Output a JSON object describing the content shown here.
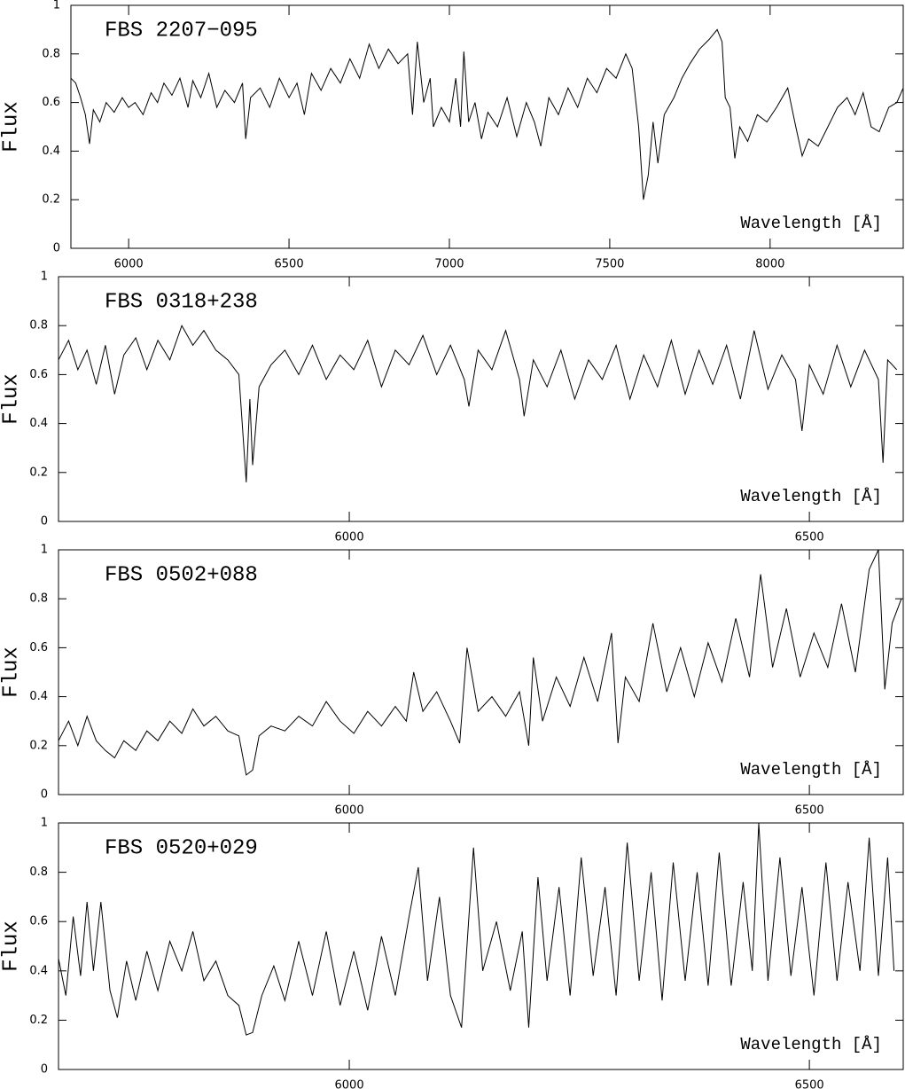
{
  "chart_data": [
    {
      "type": "line",
      "title": "FBS 2207−095",
      "xlabel": "Wavelength [Å]",
      "ylabel": "Flux",
      "color": "#000000",
      "xlim": [
        5820,
        8415
      ],
      "ylim": [
        0,
        1
      ],
      "xticks": [
        6000,
        6500,
        7000,
        7500,
        8000
      ],
      "yticks": [
        0,
        0.2,
        0.4,
        0.6,
        0.8,
        1
      ],
      "x": [
        5820,
        5835,
        5850,
        5865,
        5878,
        5890,
        5910,
        5930,
        5955,
        5980,
        6000,
        6020,
        6045,
        6070,
        6090,
        6110,
        6135,
        6160,
        6185,
        6200,
        6225,
        6250,
        6275,
        6300,
        6330,
        6355,
        6365,
        6380,
        6410,
        6440,
        6470,
        6500,
        6525,
        6548,
        6570,
        6600,
        6630,
        6660,
        6690,
        6720,
        6750,
        6780,
        6810,
        6840,
        6870,
        6885,
        6900,
        6920,
        6940,
        6950,
        6975,
        7000,
        7020,
        7035,
        7045,
        7060,
        7080,
        7100,
        7120,
        7150,
        7180,
        7210,
        7240,
        7265,
        7285,
        7310,
        7340,
        7370,
        7400,
        7430,
        7460,
        7490,
        7520,
        7550,
        7570,
        7590,
        7605,
        7620,
        7635,
        7650,
        7670,
        7700,
        7725,
        7750,
        7780,
        7810,
        7835,
        7850,
        7860,
        7875,
        7890,
        7905,
        7930,
        7960,
        7990,
        8020,
        8055,
        8080,
        8100,
        8120,
        8150,
        8180,
        8210,
        8240,
        8265,
        8290,
        8315,
        8340,
        8370,
        8395,
        8415
      ],
      "values": [
        0.7,
        0.68,
        0.62,
        0.55,
        0.43,
        0.57,
        0.52,
        0.6,
        0.56,
        0.62,
        0.58,
        0.6,
        0.55,
        0.64,
        0.6,
        0.68,
        0.63,
        0.7,
        0.58,
        0.69,
        0.62,
        0.72,
        0.58,
        0.65,
        0.6,
        0.68,
        0.45,
        0.62,
        0.66,
        0.58,
        0.7,
        0.62,
        0.68,
        0.55,
        0.72,
        0.65,
        0.74,
        0.68,
        0.78,
        0.7,
        0.84,
        0.74,
        0.82,
        0.76,
        0.8,
        0.55,
        0.85,
        0.6,
        0.7,
        0.5,
        0.58,
        0.52,
        0.7,
        0.5,
        0.81,
        0.52,
        0.6,
        0.45,
        0.56,
        0.5,
        0.62,
        0.46,
        0.6,
        0.52,
        0.42,
        0.62,
        0.55,
        0.66,
        0.58,
        0.7,
        0.64,
        0.74,
        0.7,
        0.8,
        0.74,
        0.5,
        0.2,
        0.3,
        0.52,
        0.35,
        0.55,
        0.62,
        0.7,
        0.76,
        0.82,
        0.86,
        0.9,
        0.85,
        0.62,
        0.58,
        0.37,
        0.5,
        0.44,
        0.55,
        0.52,
        0.58,
        0.66,
        0.5,
        0.38,
        0.45,
        0.42,
        0.5,
        0.58,
        0.62,
        0.55,
        0.64,
        0.5,
        0.48,
        0.58,
        0.6,
        0.66
      ]
    },
    {
      "type": "line",
      "title": "FBS 0318+238",
      "xlabel": "Wavelength [Å]",
      "ylabel": "Flux",
      "color": "#000000",
      "xlim": [
        5684,
        6602
      ],
      "ylim": [
        0,
        1
      ],
      "xticks": [
        6000,
        6500
      ],
      "yticks": [
        0,
        0.2,
        0.4,
        0.6,
        0.8,
        1
      ],
      "x": [
        5684,
        5695,
        5705,
        5715,
        5725,
        5735,
        5745,
        5755,
        5768,
        5780,
        5792,
        5805,
        5818,
        5830,
        5842,
        5855,
        5868,
        5880,
        5888,
        5892,
        5895,
        5902,
        5915,
        5930,
        5945,
        5960,
        5975,
        5990,
        6005,
        6020,
        6035,
        6050,
        6065,
        6080,
        6095,
        6110,
        6125,
        6130,
        6140,
        6155,
        6170,
        6185,
        6190,
        6200,
        6215,
        6230,
        6245,
        6260,
        6275,
        6290,
        6305,
        6320,
        6335,
        6350,
        6365,
        6380,
        6395,
        6410,
        6425,
        6440,
        6455,
        6470,
        6485,
        6492,
        6500,
        6515,
        6530,
        6545,
        6560,
        6575,
        6580,
        6585,
        6595
      ],
      "values": [
        0.66,
        0.74,
        0.62,
        0.7,
        0.56,
        0.72,
        0.52,
        0.68,
        0.75,
        0.62,
        0.74,
        0.66,
        0.8,
        0.72,
        0.78,
        0.7,
        0.66,
        0.6,
        0.16,
        0.5,
        0.23,
        0.55,
        0.64,
        0.7,
        0.6,
        0.72,
        0.58,
        0.68,
        0.62,
        0.74,
        0.55,
        0.7,
        0.64,
        0.76,
        0.6,
        0.72,
        0.58,
        0.47,
        0.7,
        0.62,
        0.78,
        0.58,
        0.43,
        0.66,
        0.55,
        0.7,
        0.5,
        0.66,
        0.58,
        0.72,
        0.5,
        0.68,
        0.55,
        0.74,
        0.52,
        0.7,
        0.56,
        0.72,
        0.5,
        0.78,
        0.54,
        0.68,
        0.58,
        0.37,
        0.64,
        0.52,
        0.72,
        0.55,
        0.7,
        0.58,
        0.24,
        0.66,
        0.62
      ]
    },
    {
      "type": "line",
      "title": "FBS 0502+088",
      "xlabel": "Wavelength [Å]",
      "ylabel": "Flux",
      "color": "#000000",
      "xlim": [
        5684,
        6602
      ],
      "ylim": [
        0,
        1
      ],
      "xticks": [
        6000,
        6500
      ],
      "yticks": [
        0,
        0.2,
        0.4,
        0.6,
        0.8,
        1
      ],
      "x": [
        5684,
        5695,
        5705,
        5715,
        5725,
        5735,
        5745,
        5755,
        5768,
        5780,
        5792,
        5805,
        5818,
        5830,
        5842,
        5855,
        5868,
        5880,
        5888,
        5895,
        5902,
        5915,
        5930,
        5945,
        5960,
        5975,
        5990,
        6005,
        6020,
        6035,
        6050,
        6062,
        6070,
        6080,
        6095,
        6110,
        6120,
        6128,
        6140,
        6155,
        6170,
        6185,
        6195,
        6200,
        6210,
        6225,
        6240,
        6255,
        6270,
        6285,
        6292,
        6300,
        6315,
        6330,
        6345,
        6360,
        6375,
        6390,
        6405,
        6420,
        6435,
        6447,
        6460,
        6475,
        6490,
        6505,
        6520,
        6535,
        6550,
        6565,
        6575,
        6582,
        6590,
        6600
      ],
      "values": [
        0.22,
        0.3,
        0.2,
        0.32,
        0.22,
        0.18,
        0.15,
        0.22,
        0.18,
        0.26,
        0.22,
        0.3,
        0.25,
        0.35,
        0.28,
        0.32,
        0.26,
        0.24,
        0.08,
        0.1,
        0.24,
        0.28,
        0.26,
        0.32,
        0.28,
        0.38,
        0.3,
        0.25,
        0.34,
        0.28,
        0.36,
        0.3,
        0.5,
        0.34,
        0.42,
        0.3,
        0.21,
        0.6,
        0.34,
        0.4,
        0.32,
        0.42,
        0.2,
        0.56,
        0.3,
        0.48,
        0.36,
        0.56,
        0.38,
        0.66,
        0.21,
        0.48,
        0.38,
        0.7,
        0.42,
        0.6,
        0.4,
        0.62,
        0.46,
        0.72,
        0.48,
        0.9,
        0.52,
        0.76,
        0.48,
        0.66,
        0.52,
        0.78,
        0.5,
        0.92,
        1.0,
        0.43,
        0.7,
        0.8
      ]
    },
    {
      "type": "line",
      "title": "FBS 0520+029",
      "xlabel": "Wavelength [Å]",
      "ylabel": "Flux",
      "color": "#000000",
      "xlim": [
        5684,
        6602
      ],
      "ylim": [
        0,
        1
      ],
      "xticks": [
        6000,
        6500
      ],
      "yticks": [
        0,
        0.2,
        0.4,
        0.6,
        0.8,
        1
      ],
      "x": [
        5684,
        5692,
        5700,
        5708,
        5715,
        5722,
        5730,
        5740,
        5748,
        5758,
        5768,
        5780,
        5792,
        5805,
        5818,
        5830,
        5842,
        5855,
        5868,
        5880,
        5888,
        5895,
        5905,
        5918,
        5930,
        5945,
        5960,
        5975,
        5990,
        6005,
        6020,
        6035,
        6050,
        6065,
        6075,
        6085,
        6098,
        6110,
        6122,
        6135,
        6145,
        6160,
        6175,
        6188,
        6195,
        6205,
        6215,
        6228,
        6240,
        6252,
        6265,
        6278,
        6290,
        6302,
        6315,
        6328,
        6340,
        6352,
        6365,
        6378,
        6390,
        6402,
        6415,
        6428,
        6438,
        6445,
        6455,
        6468,
        6480,
        6492,
        6505,
        6518,
        6530,
        6542,
        6555,
        6565,
        6575,
        6585,
        6592
      ],
      "values": [
        0.45,
        0.3,
        0.62,
        0.38,
        0.68,
        0.4,
        0.68,
        0.32,
        0.21,
        0.44,
        0.28,
        0.48,
        0.32,
        0.52,
        0.4,
        0.56,
        0.36,
        0.44,
        0.3,
        0.26,
        0.14,
        0.15,
        0.3,
        0.42,
        0.28,
        0.52,
        0.3,
        0.56,
        0.26,
        0.48,
        0.24,
        0.54,
        0.3,
        0.62,
        0.82,
        0.36,
        0.7,
        0.3,
        0.17,
        0.9,
        0.4,
        0.6,
        0.32,
        0.56,
        0.17,
        0.78,
        0.36,
        0.74,
        0.3,
        0.86,
        0.38,
        0.74,
        0.3,
        0.92,
        0.36,
        0.8,
        0.28,
        0.84,
        0.36,
        0.8,
        0.34,
        0.88,
        0.34,
        0.76,
        0.4,
        1.0,
        0.36,
        0.86,
        0.38,
        0.74,
        0.3,
        0.84,
        0.36,
        0.76,
        0.4,
        0.94,
        0.38,
        0.86,
        0.4
      ]
    }
  ]
}
